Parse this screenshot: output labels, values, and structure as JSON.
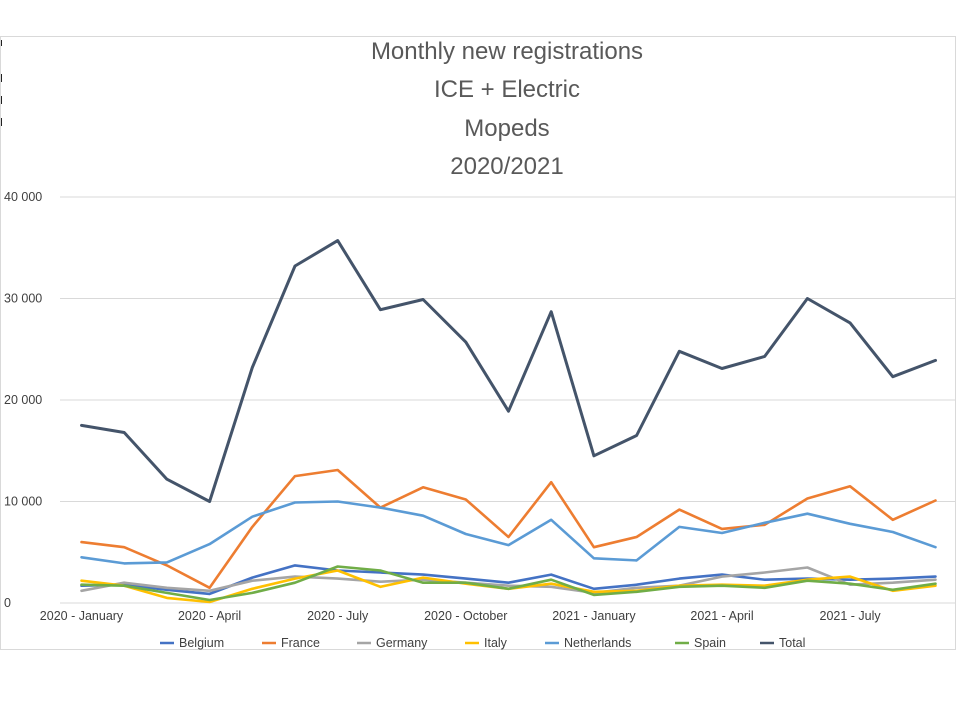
{
  "chart_data": {
    "type": "line",
    "title": [
      "Monthly new registrations",
      "ICE + Electric",
      "Mopeds",
      "2020/2021"
    ],
    "xlabel": "",
    "ylabel": "",
    "ylim": [
      0,
      40000
    ],
    "yticks": [
      0,
      10000,
      20000,
      30000,
      40000
    ],
    "ytick_labels": [
      "0",
      "10 000",
      "20 000",
      "30 000",
      "40 000"
    ],
    "x": [
      "2020-01",
      "2020-02",
      "2020-03",
      "2020-04",
      "2020-05",
      "2020-06",
      "2020-07",
      "2020-08",
      "2020-09",
      "2020-10",
      "2020-11",
      "2020-12",
      "2021-01",
      "2021-02",
      "2021-03",
      "2021-04",
      "2021-05",
      "2021-06",
      "2021-07",
      "2021-08",
      "2021-09"
    ],
    "xtick_labels": [
      {
        "index": 0,
        "label": "2020 - January"
      },
      {
        "index": 3,
        "label": "2020 - April"
      },
      {
        "index": 6,
        "label": "2020 - July"
      },
      {
        "index": 9,
        "label": "2020 - October"
      },
      {
        "index": 12,
        "label": "2021 - January"
      },
      {
        "index": 15,
        "label": "2021 - April"
      },
      {
        "index": 18,
        "label": "2021 - July"
      }
    ],
    "grid": true,
    "legend_position": "bottom",
    "series": [
      {
        "name": "Belgium",
        "color": "#4472C4",
        "values": [
          1700,
          1800,
          1300,
          900,
          2500,
          3700,
          3200,
          3000,
          2800,
          2400,
          2000,
          2800,
          1400,
          1800,
          2400,
          2800,
          2300,
          2400,
          2300,
          2400,
          2600
        ]
      },
      {
        "name": "France",
        "color": "#ED7D31",
        "values": [
          6000,
          5500,
          3700,
          1500,
          7500,
          12500,
          13100,
          9400,
          11400,
          10200,
          6500,
          11900,
          5500,
          6500,
          9200,
          7300,
          7700,
          10300,
          11500,
          8200,
          10100
        ]
      },
      {
        "name": "Germany",
        "color": "#A5A5A5",
        "values": [
          1200,
          2000,
          1500,
          1200,
          2200,
          2600,
          2400,
          2100,
          2300,
          2000,
          1700,
          1600,
          1000,
          1500,
          1700,
          2600,
          3000,
          3500,
          1800,
          2000,
          2300
        ]
      },
      {
        "name": "Italy",
        "color": "#FFC000",
        "values": [
          2200,
          1700,
          500,
          100,
          1400,
          2400,
          3200,
          1600,
          2500,
          1900,
          1400,
          1900,
          1100,
          1200,
          1700,
          1800,
          1700,
          2300,
          2600,
          1200,
          1700
        ]
      },
      {
        "name": "Netherlands",
        "color": "#5B9BD5",
        "values": [
          4500,
          3900,
          4000,
          5800,
          8500,
          9900,
          10000,
          9400,
          8600,
          6800,
          5700,
          8200,
          4400,
          4200,
          7500,
          6900,
          7900,
          8800,
          7800,
          7000,
          5500
        ]
      },
      {
        "name": "Spain",
        "color": "#70AD47",
        "values": [
          1800,
          1700,
          1000,
          300,
          1000,
          2000,
          3600,
          3200,
          2000,
          2000,
          1400,
          2300,
          800,
          1100,
          1600,
          1700,
          1500,
          2200,
          1900,
          1300,
          1900
        ]
      },
      {
        "name": "Total",
        "color": "#44546A",
        "values": [
          17500,
          16800,
          12200,
          10000,
          23200,
          33200,
          35700,
          28900,
          29900,
          25700,
          18900,
          28700,
          14500,
          16500,
          24800,
          23100,
          24300,
          30000,
          27600,
          22300,
          23900
        ]
      }
    ]
  }
}
